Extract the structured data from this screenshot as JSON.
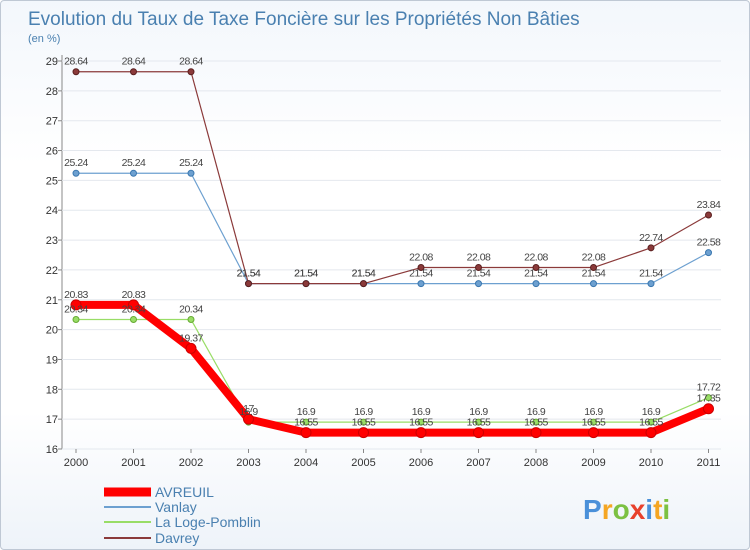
{
  "chart_data": {
    "type": "line",
    "title": "Evolution du Taux de Taxe Foncière sur les Propriétés Non Bâties",
    "ylabel": "(en %)",
    "xlabel": "",
    "categories": [
      "2000",
      "2001",
      "2002",
      "2003",
      "2004",
      "2005",
      "2006",
      "2007",
      "2008",
      "2009",
      "2010",
      "2011"
    ],
    "ylim": [
      16,
      29
    ],
    "yticks": [
      "16",
      "17",
      "18",
      "19",
      "20",
      "21",
      "22",
      "23",
      "24",
      "25",
      "26",
      "27",
      "28",
      "29"
    ],
    "series": [
      {
        "name": "AVREUIL",
        "color": "#ff0000",
        "width": 8,
        "values": [
          20.83,
          20.83,
          19.37,
          17.0,
          16.55,
          16.55,
          16.55,
          16.55,
          16.55,
          16.55,
          16.55,
          17.35
        ],
        "labels": [
          "20.83",
          "20.83",
          "19.37",
          "17",
          "16.55",
          "16.55",
          "16.55",
          "16.55",
          "16.55",
          "16.55",
          "16.55",
          "17.35"
        ]
      },
      {
        "name": "Vanlay",
        "color": "#6da0d0",
        "width": 1.2,
        "values": [
          25.24,
          25.24,
          25.24,
          21.54,
          21.54,
          21.54,
          21.54,
          21.54,
          21.54,
          21.54,
          21.54,
          22.58
        ],
        "labels": [
          "25.24",
          "25.24",
          "25.24",
          "21.54",
          "21.54",
          "21.54",
          "21.54",
          "21.54",
          "21.54",
          "21.54",
          "21.54",
          "22.58"
        ]
      },
      {
        "name": "La Loge-Pomblin",
        "color": "#99dd66",
        "width": 1.2,
        "values": [
          20.34,
          20.34,
          20.34,
          16.9,
          16.9,
          16.9,
          16.9,
          16.9,
          16.9,
          16.9,
          16.9,
          17.72
        ],
        "labels": [
          "20.34",
          "20.34",
          "20.34",
          "16.9",
          "16.9",
          "16.9",
          "16.9",
          "16.9",
          "16.9",
          "16.9",
          "16.9",
          "17.72"
        ]
      },
      {
        "name": "Davrey",
        "color": "#8b3a3a",
        "width": 1.2,
        "values": [
          28.64,
          28.64,
          28.64,
          21.54,
          21.54,
          21.54,
          22.08,
          22.08,
          22.08,
          22.08,
          22.74,
          23.84
        ],
        "labels": [
          "28.64",
          "28.64",
          "28.64",
          "21.54",
          "21.54",
          "21.54",
          "22.08",
          "22.08",
          "22.08",
          "22.08",
          "22.74",
          "23.84"
        ]
      }
    ]
  },
  "brand": {
    "logo_text": "Proxiti"
  }
}
